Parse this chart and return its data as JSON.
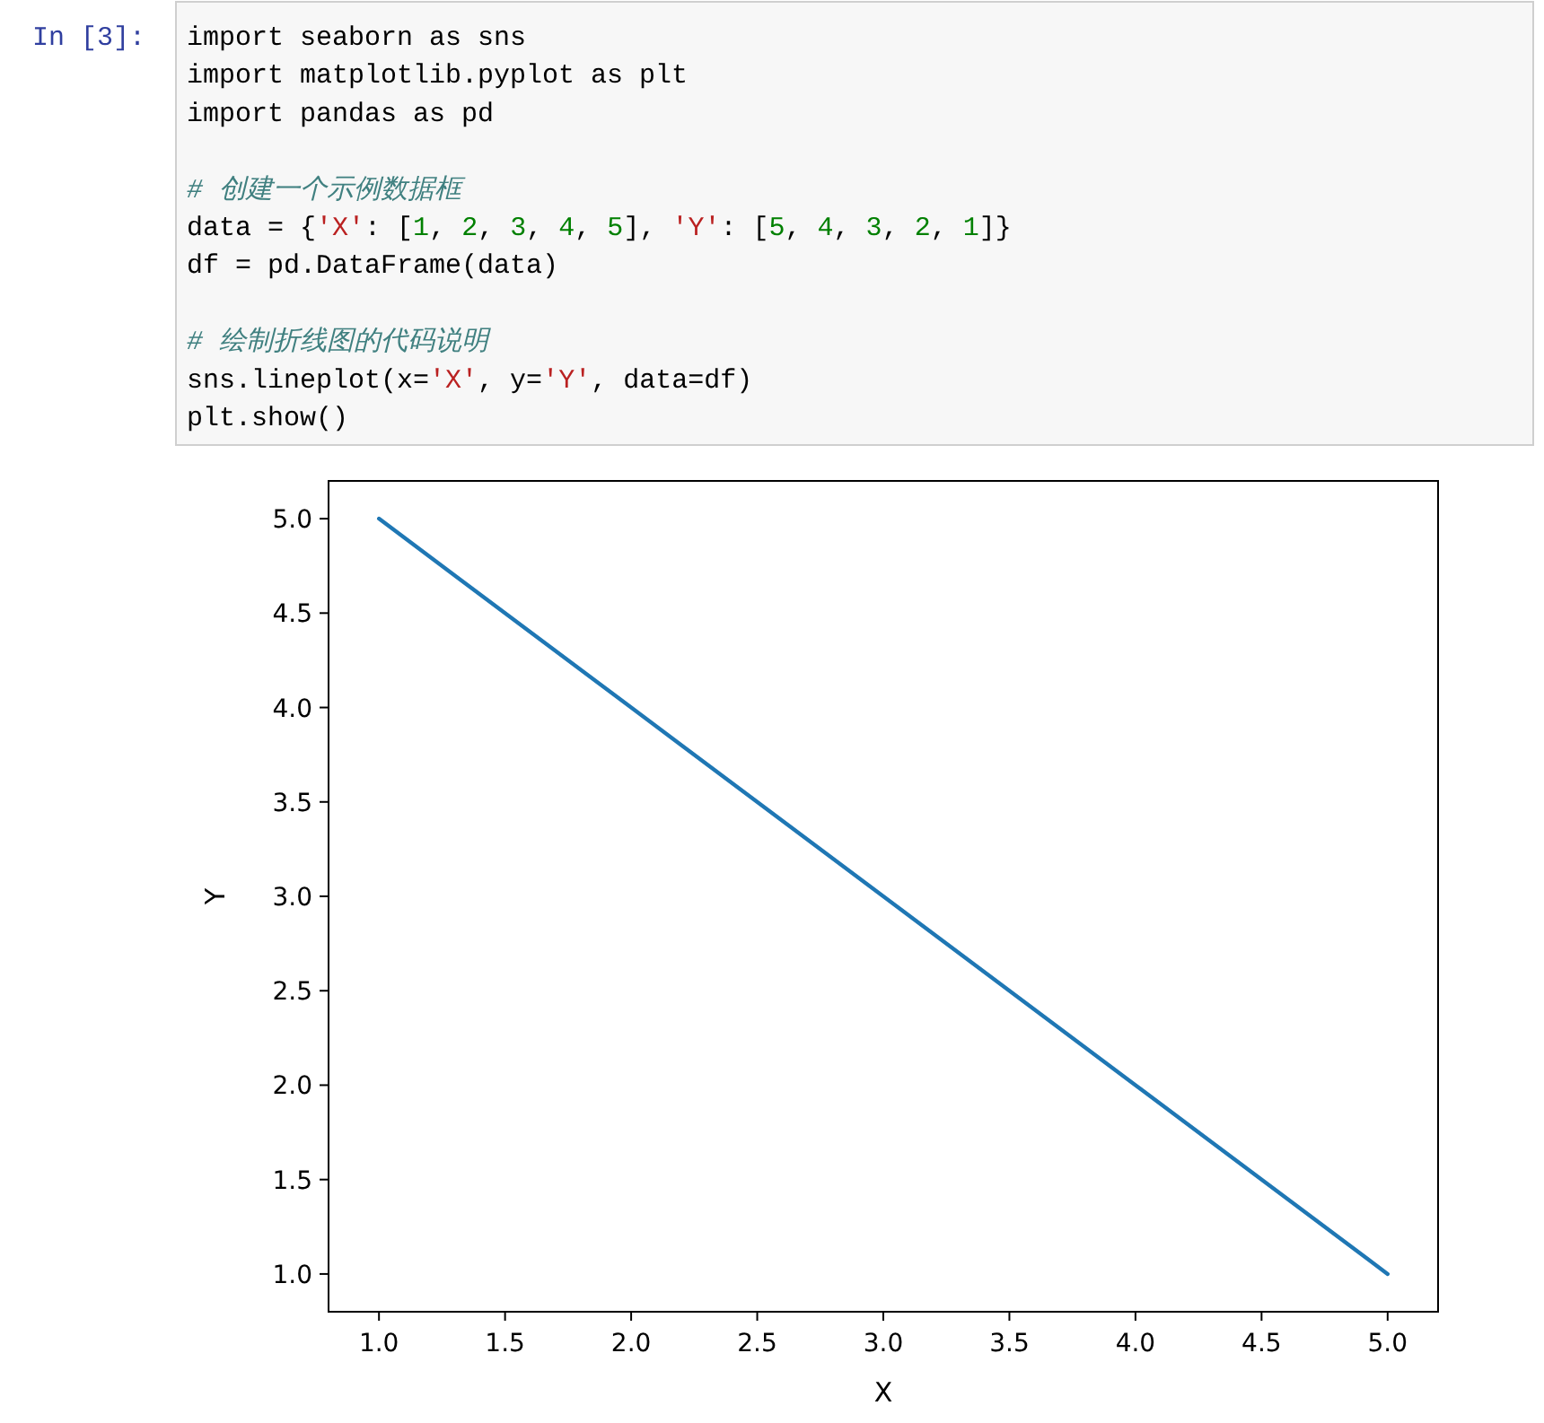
{
  "chart_data": {
    "type": "line",
    "annotations": [
      "In [3]:",
      "import seaborn as sns\nimport matplotlib.pyplot as plt\nimport pandas as pd\n\n# 创建一个示例数据框\ndata = {'X': [1, 2, 3, 4, 5], 'Y': [5, 4, 3, 2, 1]}\ndf = pd.DataFrame(data)\n\n# 绘制折线图的代码说明\nsns.lineplot(x='X', y='Y', data=df)\nplt.show()"
    ],
    "xlabel": "X",
    "ylabel": "Y",
    "x": [
      1,
      2,
      3,
      4,
      5
    ],
    "series": [
      {
        "color": "#1f77b4",
        "values": [
          5,
          4,
          3,
          2,
          1
        ]
      }
    ],
    "line_style": "solid",
    "xlim": [
      0.8,
      5.2
    ],
    "ylim": [
      0.8,
      5.2
    ],
    "xticks": [
      {
        "value": 1,
        "label": "1.0"
      },
      {
        "value": 1.5,
        "label": "1.5"
      },
      {
        "value": 2,
        "label": "2.0"
      },
      {
        "value": 2.5,
        "label": "2.5"
      },
      {
        "value": 3,
        "label": "3.0"
      },
      {
        "value": 3.5,
        "label": "3.5"
      },
      {
        "value": 4,
        "label": "4.0"
      },
      {
        "value": 4.5,
        "label": "4.5"
      },
      {
        "value": 5,
        "label": "5.0"
      }
    ],
    "yticks": [
      {
        "value": 1,
        "label": "1.0"
      },
      {
        "value": 1.5,
        "label": "1.5"
      },
      {
        "value": 2,
        "label": "2.0"
      },
      {
        "value": 2.5,
        "label": "2.5"
      },
      {
        "value": 3,
        "label": "3.0"
      },
      {
        "value": 3.5,
        "label": "3.5"
      },
      {
        "value": 4,
        "label": "4.0"
      },
      {
        "value": 4.5,
        "label": "4.5"
      },
      {
        "value": 5,
        "label": "5.0"
      }
    ]
  }
}
